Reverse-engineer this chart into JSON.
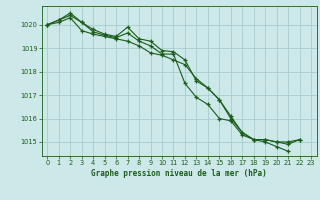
{
  "title": "Graphe pression niveau de la mer (hPa)",
  "background_color": "#cce8e8",
  "grid_color": "#aacccc",
  "line_color": "#1a5c1a",
  "xlim": [
    -0.5,
    23.5
  ],
  "ylim": [
    1014.4,
    1020.8
  ],
  "yticks": [
    1015,
    1016,
    1017,
    1018,
    1019,
    1020
  ],
  "xticks": [
    0,
    1,
    2,
    3,
    4,
    5,
    6,
    7,
    8,
    9,
    10,
    11,
    12,
    13,
    14,
    15,
    16,
    17,
    18,
    19,
    20,
    21,
    22,
    23
  ],
  "xlabel_fontsize": 5.5,
  "tick_fontsize": 4.8,
  "series": [
    {
      "x": [
        0,
        1,
        2,
        3,
        4,
        5,
        6,
        7,
        8,
        9,
        10,
        11,
        12,
        13,
        14,
        15,
        16,
        17,
        18,
        19,
        20,
        21,
        22
      ],
      "y": [
        1020.0,
        1020.2,
        1020.4,
        1020.1,
        1019.8,
        1019.6,
        1019.5,
        1019.9,
        1019.4,
        1019.3,
        1018.9,
        1018.85,
        1018.5,
        1017.6,
        1017.3,
        1016.8,
        1016.1,
        1015.4,
        1015.1,
        1015.1,
        1015.0,
        1014.9,
        1015.1
      ]
    },
    {
      "x": [
        0,
        1,
        2,
        3,
        4,
        5,
        6,
        7,
        8,
        9,
        10,
        11,
        12,
        13,
        14,
        15,
        16,
        17,
        18,
        19,
        20,
        21
      ],
      "y": [
        1020.0,
        1020.2,
        1020.5,
        1020.1,
        1019.7,
        1019.55,
        1019.45,
        1019.65,
        1019.3,
        1019.1,
        1018.75,
        1018.75,
        1017.5,
        1016.9,
        1016.6,
        1016.0,
        1015.9,
        1015.3,
        1015.1,
        1015.0,
        1014.8,
        1014.6
      ]
    },
    {
      "x": [
        0,
        1,
        2,
        3,
        4,
        5,
        6,
        7,
        8,
        9,
        10,
        11,
        12,
        13,
        14,
        15,
        16,
        17,
        18,
        19,
        20,
        21,
        22
      ],
      "y": [
        1020.0,
        1020.1,
        1020.3,
        1019.75,
        1019.6,
        1019.5,
        1019.4,
        1019.3,
        1019.1,
        1018.8,
        1018.7,
        1018.5,
        1018.3,
        1017.7,
        1017.3,
        1016.8,
        1016.0,
        1015.4,
        1015.1,
        1015.1,
        1015.0,
        1015.0,
        1015.1
      ]
    }
  ]
}
